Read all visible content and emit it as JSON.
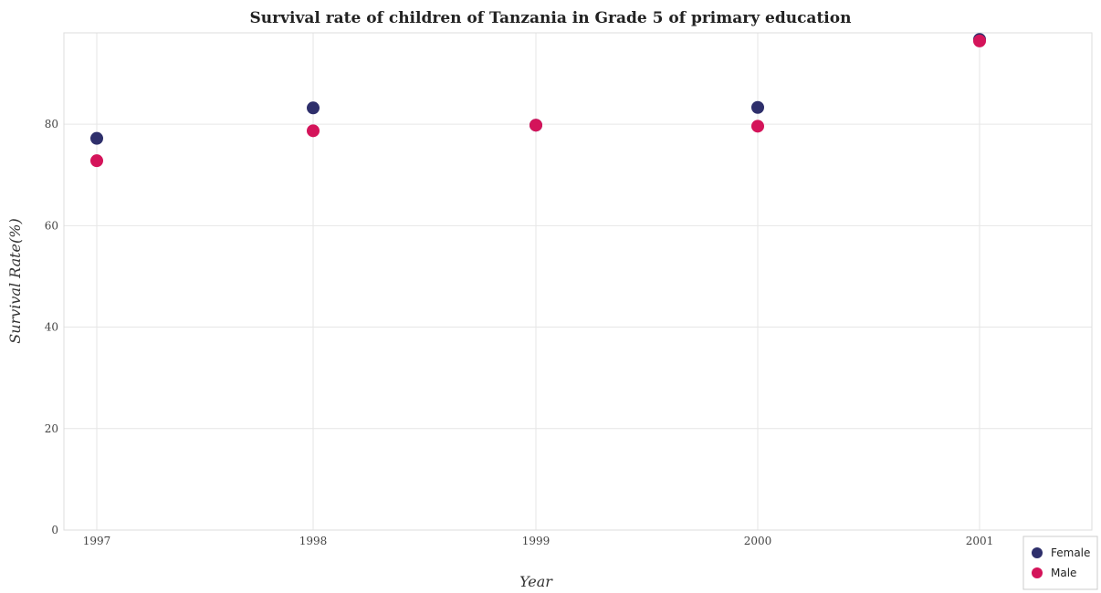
{
  "chart_data": {
    "type": "scatter",
    "title": "Survival rate of children of Tanzania in Grade 5 of primary education",
    "xlabel": "Year",
    "ylabel": "Survival Rate(%)",
    "categories": [
      "1997",
      "1998",
      "1999",
      "2000",
      "2001"
    ],
    "y_ticks": [
      "0",
      "20",
      "40",
      "60",
      "80"
    ],
    "ylim": [
      0,
      98
    ],
    "grid": true,
    "legend_position": "bottom-right",
    "series": [
      {
        "name": "Female",
        "color": "#2e2f6b",
        "values": [
          77.2,
          83.2,
          79.8,
          83.3,
          96.7
        ]
      },
      {
        "name": "Male",
        "color": "#d4145a",
        "values": [
          72.8,
          78.7,
          79.8,
          79.6,
          96.4
        ]
      }
    ]
  }
}
